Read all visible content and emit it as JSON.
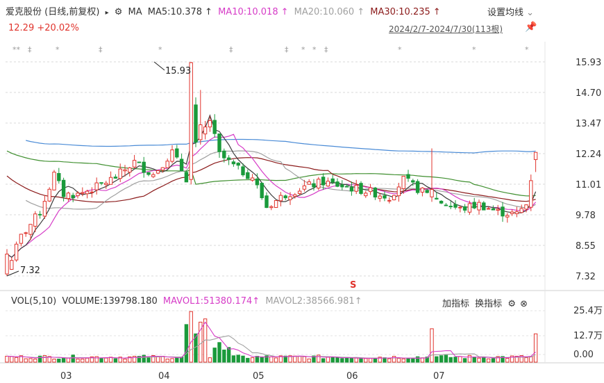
{
  "header": {
    "stock_name": "爱克股份 (日线,前复权)",
    "arrow": "▸",
    "ma_label": "MA",
    "ma5": "MA5:10.378",
    "ma10": "MA10:10.018",
    "ma20": "MA20:10.060",
    "ma30": "MA30:10.235",
    "settings": "设置均线",
    "settings_chevron": "⌄",
    "price_change": "12.29 +20.02%",
    "date_range": "2024/2/7-2024/7/30(113根)"
  },
  "price_axis": [
    "15.93",
    "14.70",
    "13.47",
    "12.24",
    "11.01",
    "9.78",
    "8.55",
    "7.32"
  ],
  "annotations": {
    "high": "15.93",
    "low": "7.32",
    "signal": "S"
  },
  "event_marks": [
    "**",
    "‡",
    "*",
    "‡",
    "*",
    "‡",
    "‡",
    "*",
    "*",
    "‡",
    "*",
    "*",
    "*"
  ],
  "volume_header": {
    "vol": "VOL(5,10)",
    "volume": "VOLUME:139798.180",
    "mavol1": "MAVOL1:51380.174",
    "mavol2": "MAVOL2:38566.981",
    "add_indicator": "加指标",
    "switch_indicator": "换指标"
  },
  "volume_axis": [
    "25.4万",
    "12.7万",
    "0.00"
  ],
  "months": [
    "03",
    "04",
    "05",
    "06",
    "07"
  ],
  "colors": {
    "up": "#e0332c",
    "down": "#1a9a3b",
    "ma5": "#3a3a3a",
    "ma10": "#d63cc7",
    "ma20": "#a0a0a0",
    "ma30": "#8b1a1a",
    "ma60": "#3f8f2f",
    "ma120": "#4a8bd6"
  },
  "chart_data": {
    "type": "candlestick",
    "title": "爱克股份 (日线,前复权)",
    "ylim": [
      7.32,
      15.93
    ],
    "y_ticks": [
      15.93,
      14.7,
      13.47,
      12.24,
      11.01,
      9.78,
      8.55,
      7.32
    ],
    "x_months": [
      "03",
      "04",
      "05",
      "06",
      "07"
    ],
    "series": [
      {
        "name": "MA5",
        "last": 10.378
      },
      {
        "name": "MA10",
        "last": 10.018
      },
      {
        "name": "MA20",
        "last": 10.06
      },
      {
        "name": "MA30",
        "last": 10.235
      }
    ],
    "high": 15.93,
    "low": 7.32,
    "last_close": 12.29,
    "change_pct": 20.02,
    "volume": {
      "ylim": [
        0,
        254000
      ],
      "last_volume": 139798.18,
      "mavol1": 51380.174,
      "mavol2": 38566.981
    }
  }
}
